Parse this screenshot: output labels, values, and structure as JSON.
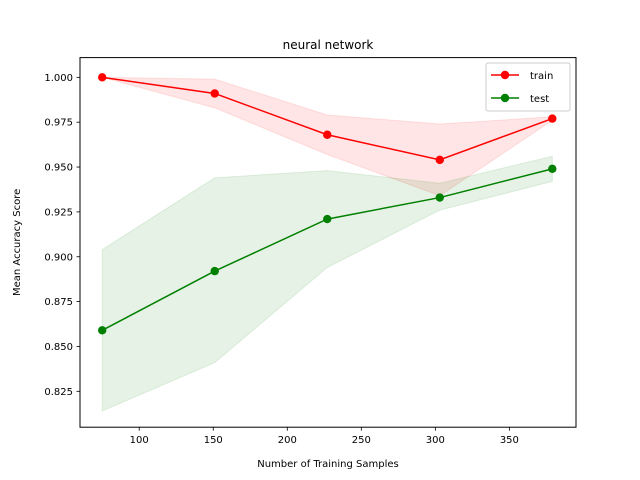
{
  "chart_data": {
    "type": "line",
    "title": "neural network",
    "xlabel": "Number of Training Samples",
    "ylabel": "Mean Accuracy Score",
    "xlim": [
      60,
      395
    ],
    "ylim": [
      0.805,
      1.011
    ],
    "xticks": [
      100,
      150,
      200,
      250,
      300,
      350
    ],
    "yticks": [
      0.825,
      0.85,
      0.875,
      0.9,
      0.925,
      0.95,
      0.975,
      1.0
    ],
    "ytick_labels": [
      "0.825",
      "0.850",
      "0.875",
      "0.900",
      "0.925",
      "0.950",
      "0.975",
      "1.000"
    ],
    "grid": false,
    "legend_position": "top-right",
    "x": [
      75,
      151,
      227,
      303,
      379
    ],
    "series": [
      {
        "name": "train",
        "color": "#ff0000",
        "band_color": "#ff0000",
        "values": [
          1.0,
          0.991,
          0.968,
          0.954,
          0.977
        ],
        "lower": [
          1.0,
          0.983,
          0.957,
          0.934,
          0.976
        ],
        "upper": [
          1.0,
          0.999,
          0.979,
          0.974,
          0.978
        ]
      },
      {
        "name": "test",
        "color": "#008000",
        "band_color": "#008000",
        "values": [
          0.859,
          0.892,
          0.921,
          0.933,
          0.949
        ],
        "lower": [
          0.814,
          0.841,
          0.894,
          0.926,
          0.942
        ],
        "upper": [
          0.904,
          0.944,
          0.948,
          0.941,
          0.956
        ]
      }
    ]
  }
}
